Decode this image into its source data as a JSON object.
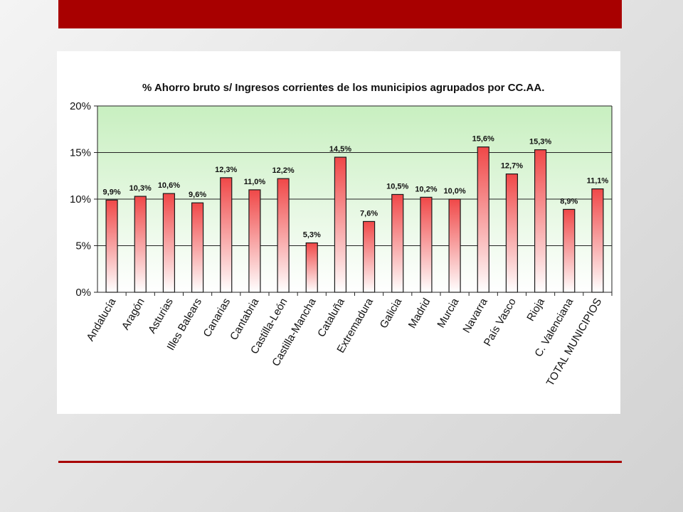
{
  "colors": {
    "band": "#a80000",
    "plot_top": "#c8efc0",
    "plot_bottom": "#ffffff",
    "bar_top": "#f04848",
    "bar_bottom": "#ffffff",
    "bar_stroke": "#1a1a1a"
  },
  "chart_data": {
    "type": "bar",
    "title": "%  Ahorro bruto s/  Ingresos corrientes de los municipios agrupados por CC.AA.",
    "categories": [
      "Andalucía",
      "Aragón",
      "Asturias",
      "Illes Balears",
      "Canarias",
      "Cantabria",
      "Castilla-León",
      "Castilla-Mancha",
      "Cataluña",
      "Extremadura",
      "Galicia",
      "Madrid",
      "Murcia",
      "Navarra",
      "País Vasco",
      "Rioja",
      "C. Valenciana",
      "TOTAL MUNICIPIOS"
    ],
    "values": [
      9.9,
      10.3,
      10.6,
      9.6,
      12.3,
      11.0,
      12.2,
      5.3,
      14.5,
      7.6,
      10.5,
      10.2,
      10.0,
      15.6,
      12.7,
      15.3,
      8.9,
      11.1
    ],
    "data_labels": [
      "9,9%",
      "10,3%",
      "10,6%",
      "9,6%",
      "12,3%",
      "11,0%",
      "12,2%",
      "5,3%",
      "14,5%",
      "7,6%",
      "10,5%",
      "10,2%",
      "10,0%",
      "15,6%",
      "12,7%",
      "15,3%",
      "8,9%",
      "11,1%"
    ],
    "yticks": [
      0,
      5,
      10,
      15,
      20
    ],
    "ytick_labels": [
      "0%",
      "5%",
      "10%",
      "15%",
      "20%"
    ],
    "ylim": [
      0,
      20
    ],
    "grid": true,
    "legend": "none",
    "xlabel": "",
    "ylabel": ""
  }
}
